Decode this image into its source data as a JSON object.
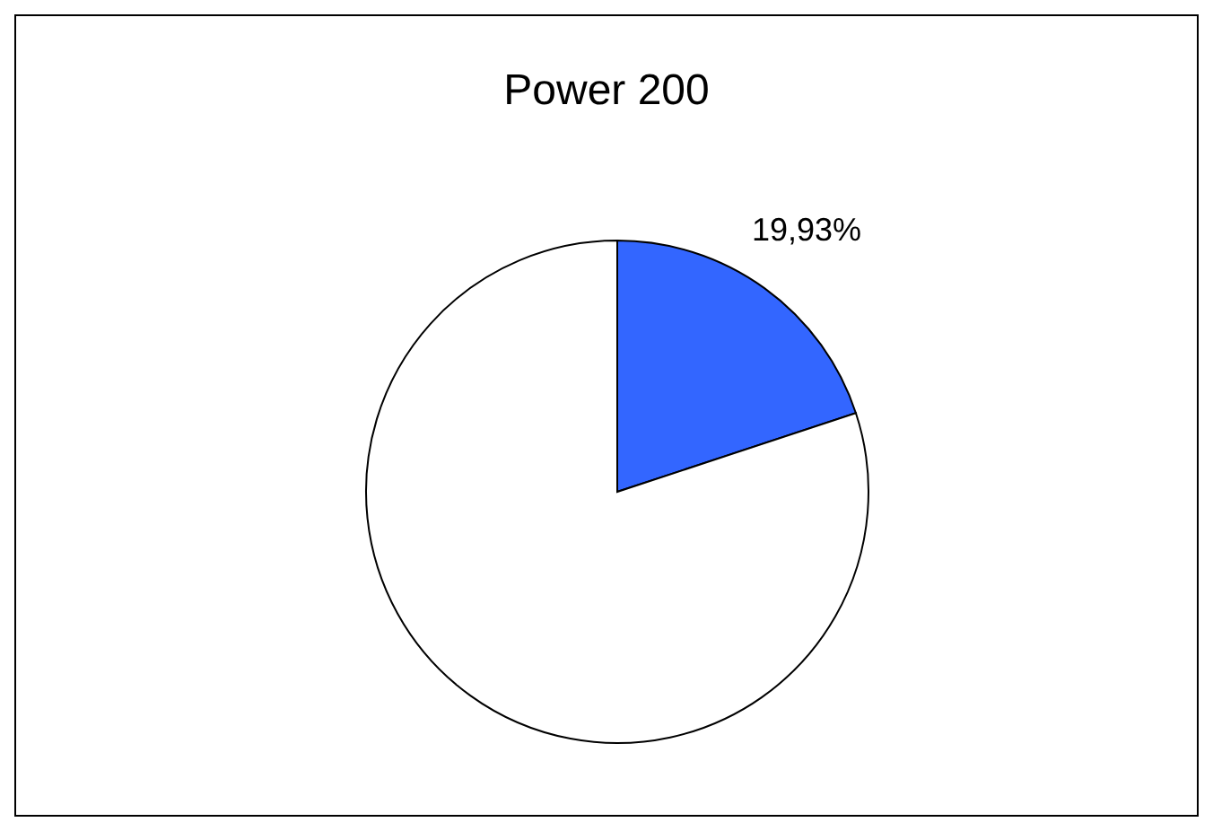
{
  "chart_data": {
    "type": "pie",
    "title": "Power 200",
    "categories": [
      null,
      null
    ],
    "values": [
      19.93,
      80.07
    ],
    "colors": [
      "#3366ff",
      "#ffffff"
    ],
    "value_labels": [
      "19,93%",
      null
    ]
  }
}
